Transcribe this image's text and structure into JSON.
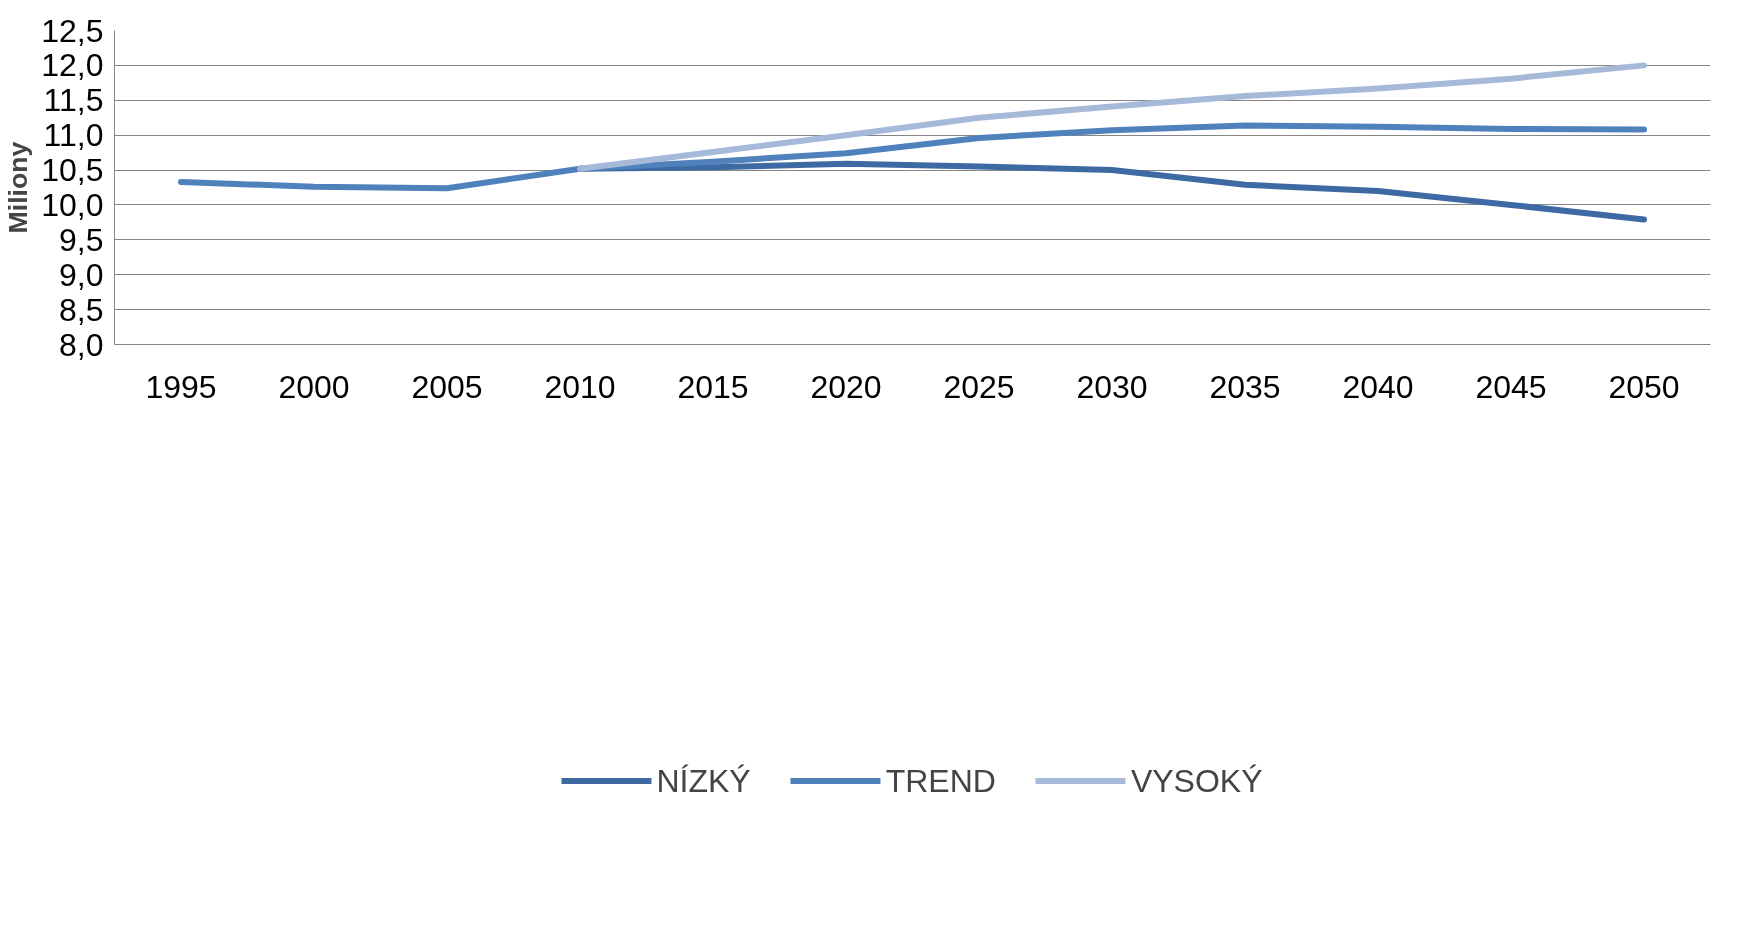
{
  "chart_data": {
    "type": "line",
    "ylabel": "Miliony",
    "categories": [
      "1995",
      "2000",
      "2005",
      "2010",
      "2015",
      "2020",
      "2025",
      "2030",
      "2035",
      "2040",
      "2045",
      "2050"
    ],
    "series": [
      {
        "name": "NÍZKÝ",
        "color": "#3d6aa3",
        "values": [
          null,
          null,
          null,
          10.52,
          10.54,
          10.59,
          10.55,
          10.5,
          10.29,
          10.2,
          10.0,
          9.79
        ]
      },
      {
        "name": "TREND",
        "color": "#4f81bd",
        "values": [
          10.33,
          10.26,
          10.24,
          10.52,
          10.62,
          10.74,
          10.96,
          11.07,
          11.14,
          11.12,
          11.09,
          11.08
        ]
      },
      {
        "name": "VYSOKÝ",
        "color": "#a7b9d9",
        "values": [
          null,
          null,
          null,
          10.52,
          10.76,
          11.0,
          11.25,
          11.41,
          11.56,
          11.67,
          11.81,
          12.0
        ]
      }
    ],
    "ylim": [
      8.0,
      12.5
    ],
    "yticks": [
      {
        "value": 8.0,
        "label": "8,0"
      },
      {
        "value": 8.5,
        "label": "8,5"
      },
      {
        "value": 9.0,
        "label": "9,0"
      },
      {
        "value": 9.5,
        "label": "9,5"
      },
      {
        "value": 10.0,
        "label": "10,0"
      },
      {
        "value": 10.5,
        "label": "10,5"
      },
      {
        "value": 11.0,
        "label": "11,0"
      },
      {
        "value": 11.5,
        "label": "11,5"
      },
      {
        "value": 12.0,
        "label": "12,0"
      },
      {
        "value": 12.5,
        "label": "12,5"
      }
    ],
    "grid": "y",
    "legend": "bottom",
    "marker": "none",
    "line_style": "solid"
  }
}
